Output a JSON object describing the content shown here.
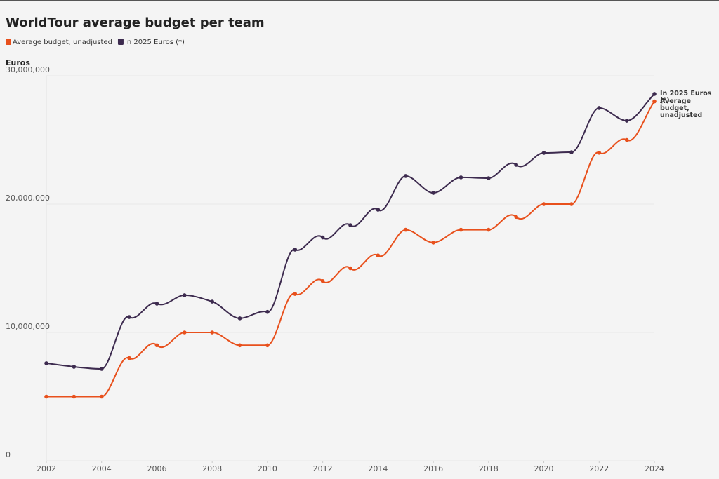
{
  "chart_data": {
    "type": "line",
    "title": "WorldTour average budget per team",
    "y_label": "Euros",
    "x": [
      2002,
      2003,
      2004,
      2005,
      2006,
      2007,
      2008,
      2009,
      2010,
      2011,
      2012,
      2013,
      2014,
      2015,
      2016,
      2017,
      2018,
      2019,
      2020,
      2021,
      2022,
      2023,
      2024
    ],
    "series": [
      {
        "name": "Average budget, unadjusted",
        "color": "#e8501c",
        "values": [
          5000000,
          5000000,
          5000000,
          8000000,
          9000000,
          10000000,
          10000000,
          9000000,
          9000000,
          13000000,
          14000000,
          15000000,
          16000000,
          18000000,
          17000000,
          18000000,
          18000000,
          19000000,
          20000000,
          20000000,
          24000000,
          25000000,
          28000000
        ]
      },
      {
        "name": "In 2025 Euros (*)",
        "color": "#3d2b4f",
        "values": [
          7600000,
          7320000,
          7160000,
          11200000,
          12240000,
          12900000,
          12400000,
          11100000,
          11600000,
          16450000,
          17400000,
          18360000,
          19560000,
          22190000,
          20870000,
          22080000,
          22020000,
          23060000,
          23990000,
          24040000,
          27490000,
          26500000,
          28580000
        ]
      }
    ],
    "xlim": [
      2002,
      2024
    ],
    "xticks": [
      2002,
      2004,
      2006,
      2008,
      2010,
      2012,
      2014,
      2016,
      2018,
      2020,
      2022,
      2024
    ],
    "ylim": [
      0,
      30000000
    ],
    "yticks": [
      0,
      {
        "value": 10000000,
        "label": "10,000,000"
      },
      {
        "value": 20000000,
        "label": "20,000,000"
      },
      {
        "value": 30000000,
        "label": "30,000,000"
      }
    ],
    "grid": true
  }
}
